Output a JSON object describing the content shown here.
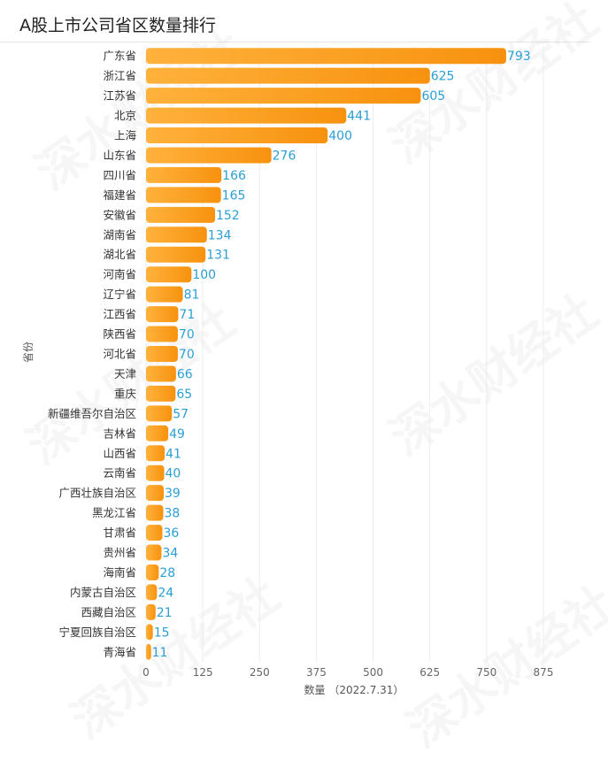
{
  "watermark_text": "深水财经社",
  "colors": {
    "bar_start": "#ffb23c",
    "bar_end": "#f7920f",
    "value_label": "#2a9fd6"
  },
  "chart_data": {
    "type": "bar",
    "orientation": "horizontal",
    "title": "A股上市公司省区数量排行",
    "xlabel": "数量 （2022.7.31）",
    "ylabel": "省份",
    "xlim": [
      0,
      875
    ],
    "xticks": [
      0,
      125,
      250,
      375,
      500,
      625,
      750,
      875
    ],
    "grid": true,
    "categories": [
      "广东省",
      "浙江省",
      "江苏省",
      "北京",
      "上海",
      "山东省",
      "四川省",
      "福建省",
      "安徽省",
      "湖南省",
      "湖北省",
      "河南省",
      "辽宁省",
      "江西省",
      "陕西省",
      "河北省",
      "天津",
      "重庆",
      "新疆维吾尔自治区",
      "吉林省",
      "山西省",
      "云南省",
      "广西壮族自治区",
      "黑龙江省",
      "甘肃省",
      "贵州省",
      "海南省",
      "内蒙古自治区",
      "西藏自治区",
      "宁夏回族自治区",
      "青海省"
    ],
    "values": [
      793,
      625,
      605,
      441,
      400,
      276,
      166,
      165,
      152,
      134,
      131,
      100,
      81,
      71,
      70,
      70,
      66,
      65,
      57,
      49,
      41,
      40,
      39,
      38,
      36,
      34,
      28,
      24,
      21,
      15,
      11
    ]
  }
}
